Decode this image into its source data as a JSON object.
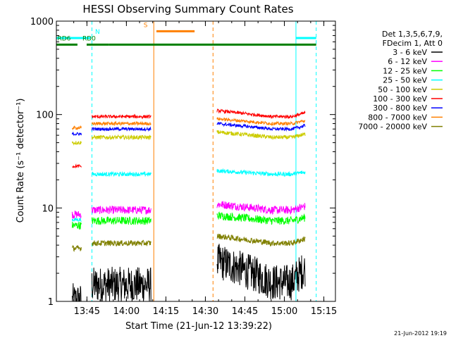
{
  "chart_data": {
    "type": "line",
    "title": "HESSI Observing Summary Count Rates",
    "xlabel": "Start Time (21-Jun-12 13:39:22)",
    "ylabel": "Count Rate (s⁻¹ detector⁻¹)",
    "x_unit": "minutes after 13:39:22",
    "x_range": [
      -6,
      100
    ],
    "y_scale": "log",
    "y_range": [
      1,
      1000
    ],
    "x_ticks": [
      {
        "t": 5.6,
        "label": "13:45"
      },
      {
        "t": 20.6,
        "label": "14:00"
      },
      {
        "t": 35.6,
        "label": "14:15"
      },
      {
        "t": 50.6,
        "label": "14:30"
      },
      {
        "t": 65.6,
        "label": "14:45"
      },
      {
        "t": 80.6,
        "label": "15:00"
      },
      {
        "t": 95.6,
        "label": "15:15"
      }
    ],
    "y_ticks": [
      {
        "v": 1,
        "label": "1"
      },
      {
        "v": 10,
        "label": "10"
      },
      {
        "v": 100,
        "label": "100"
      },
      {
        "v": 1000,
        "label": "1000"
      }
    ],
    "legend": {
      "placement": "right",
      "header": [
        "Det 1,3,5,6,7,9,",
        "FDecim 1, Att 0"
      ]
    },
    "segments": [
      {
        "start": 0,
        "end": 3.5,
        "gap_start": 3.5,
        "gap_end": 7.5
      },
      {
        "start": 7.5,
        "end": 30
      },
      {
        "start": 55,
        "end": 88.5
      }
    ],
    "series": [
      {
        "name": "3 - 6 keV",
        "color": "#000000",
        "levels": [
          1.0,
          1.5,
          1.6,
          2.7
        ],
        "noise": 0.45
      },
      {
        "name": "6 - 12 keV",
        "color": "#ff00ff",
        "levels": [
          8.5,
          9.5,
          9.5,
          11.0
        ],
        "noise": 0.1
      },
      {
        "name": "12 - 25 keV",
        "color": "#00ff00",
        "levels": [
          6.5,
          7.3,
          7.3,
          8.3
        ],
        "noise": 0.1
      },
      {
        "name": "25 - 50 keV",
        "color": "#00ffff",
        "levels": [
          7.5,
          23.0,
          23.0,
          25.0
        ],
        "noise": 0.05
      },
      {
        "name": "50 - 100 keV",
        "color": "#cccc00",
        "levels": [
          50.0,
          57.0,
          57.0,
          65.0
        ],
        "noise": 0.05
      },
      {
        "name": "100 - 300 keV",
        "color": "#ff0000",
        "levels": [
          28.0,
          95.0,
          95.0,
          110.0
        ],
        "noise": 0.04
      },
      {
        "name": "300 - 800 keV",
        "color": "#0000ff",
        "levels": [
          62.0,
          70.0,
          70.0,
          80.0
        ],
        "noise": 0.04
      },
      {
        "name": "800 - 7000 keV",
        "color": "#ff8000",
        "levels": [
          72.0,
          80.0,
          80.0,
          90.0
        ],
        "noise": 0.04
      },
      {
        "name": "7000 - 20000 keV",
        "color": "#808000",
        "levels": [
          3.7,
          4.2,
          4.2,
          5.0
        ],
        "noise": 0.07
      }
    ],
    "flags": [
      {
        "label": "N",
        "color": "#00ffff",
        "level": 660,
        "intervals": [
          [
            -6,
            7
          ],
          [
            85,
            92.7
          ]
        ],
        "label_t": 8.2,
        "label_side": "right"
      },
      {
        "label": "S",
        "color": "#ff8000",
        "level": 780,
        "intervals": [
          [
            32,
            46.5
          ]
        ],
        "label_t": 29.2,
        "label_side": "left"
      },
      {
        "label": "RD6",
        "color": "#008000",
        "level": 560,
        "intervals": [
          [
            14,
            92.7
          ]
        ],
        "label_t": 0,
        "label_side": "left"
      },
      {
        "label": "RD0",
        "color": "#008000",
        "level": 560,
        "intervals": [
          [
            -6,
            2
          ],
          [
            5.5,
            14
          ]
        ],
        "label_t": 9.5,
        "label_side": "left"
      }
    ],
    "markers": [
      {
        "t": -6,
        "color": "#00ffff",
        "style": "solid"
      },
      {
        "t": 7.5,
        "color": "#00ffff",
        "style": "dashed"
      },
      {
        "t": 31,
        "color": "#ff8000",
        "style": "solid"
      },
      {
        "t": 53.5,
        "color": "#ff8000",
        "style": "dashed"
      },
      {
        "t": 85,
        "color": "#00ffff",
        "style": "solid"
      },
      {
        "t": 92.7,
        "color": "#00ffff",
        "style": "dashed"
      }
    ]
  },
  "footer": {
    "timestamp": "21-Jun-2012 19:19"
  }
}
